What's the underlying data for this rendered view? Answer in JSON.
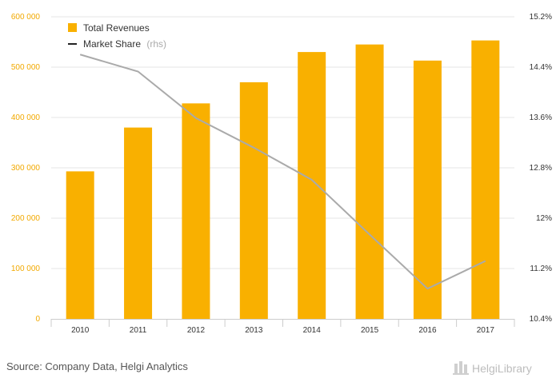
{
  "chart_data": {
    "type": "bar",
    "categories": [
      "2010",
      "2011",
      "2012",
      "2013",
      "2014",
      "2015",
      "2016",
      "2017"
    ],
    "series": [
      {
        "name": "Total Revenues",
        "axis": "left",
        "chart_type": "bar",
        "color": "#f9b000",
        "values": [
          293000,
          380000,
          428000,
          470000,
          530000,
          545000,
          513000,
          553000
        ]
      },
      {
        "name": "Market Share",
        "suffix": "(rhs)",
        "axis": "right",
        "chart_type": "line",
        "color": "#aaaaaa",
        "values": [
          14.6,
          14.33,
          13.59,
          13.12,
          12.61,
          11.74,
          10.88,
          11.32
        ]
      }
    ],
    "left_axis": {
      "ylim": [
        0,
        600000
      ],
      "ticks": [
        0,
        100000,
        200000,
        300000,
        400000,
        500000,
        600000
      ],
      "tick_labels": [
        "0",
        "100 000",
        "200 000",
        "300 000",
        "400 000",
        "500 000",
        "600 000"
      ],
      "color": "#f2a900"
    },
    "right_axis": {
      "ylim": [
        10.4,
        15.2
      ],
      "ticks": [
        10.4,
        11.2,
        12.0,
        12.8,
        13.6,
        14.4,
        15.2
      ],
      "tick_labels": [
        "10.4%",
        "11.2%",
        "12%",
        "12.8%",
        "13.6%",
        "14.4%",
        "15.2%"
      ]
    },
    "title": "",
    "xlabel": "",
    "ylabel": "",
    "grid": true,
    "legend": "top-left"
  },
  "footer": {
    "source": "Source: Company Data, Helgi Analytics",
    "brand": "HelgiLibrary"
  }
}
